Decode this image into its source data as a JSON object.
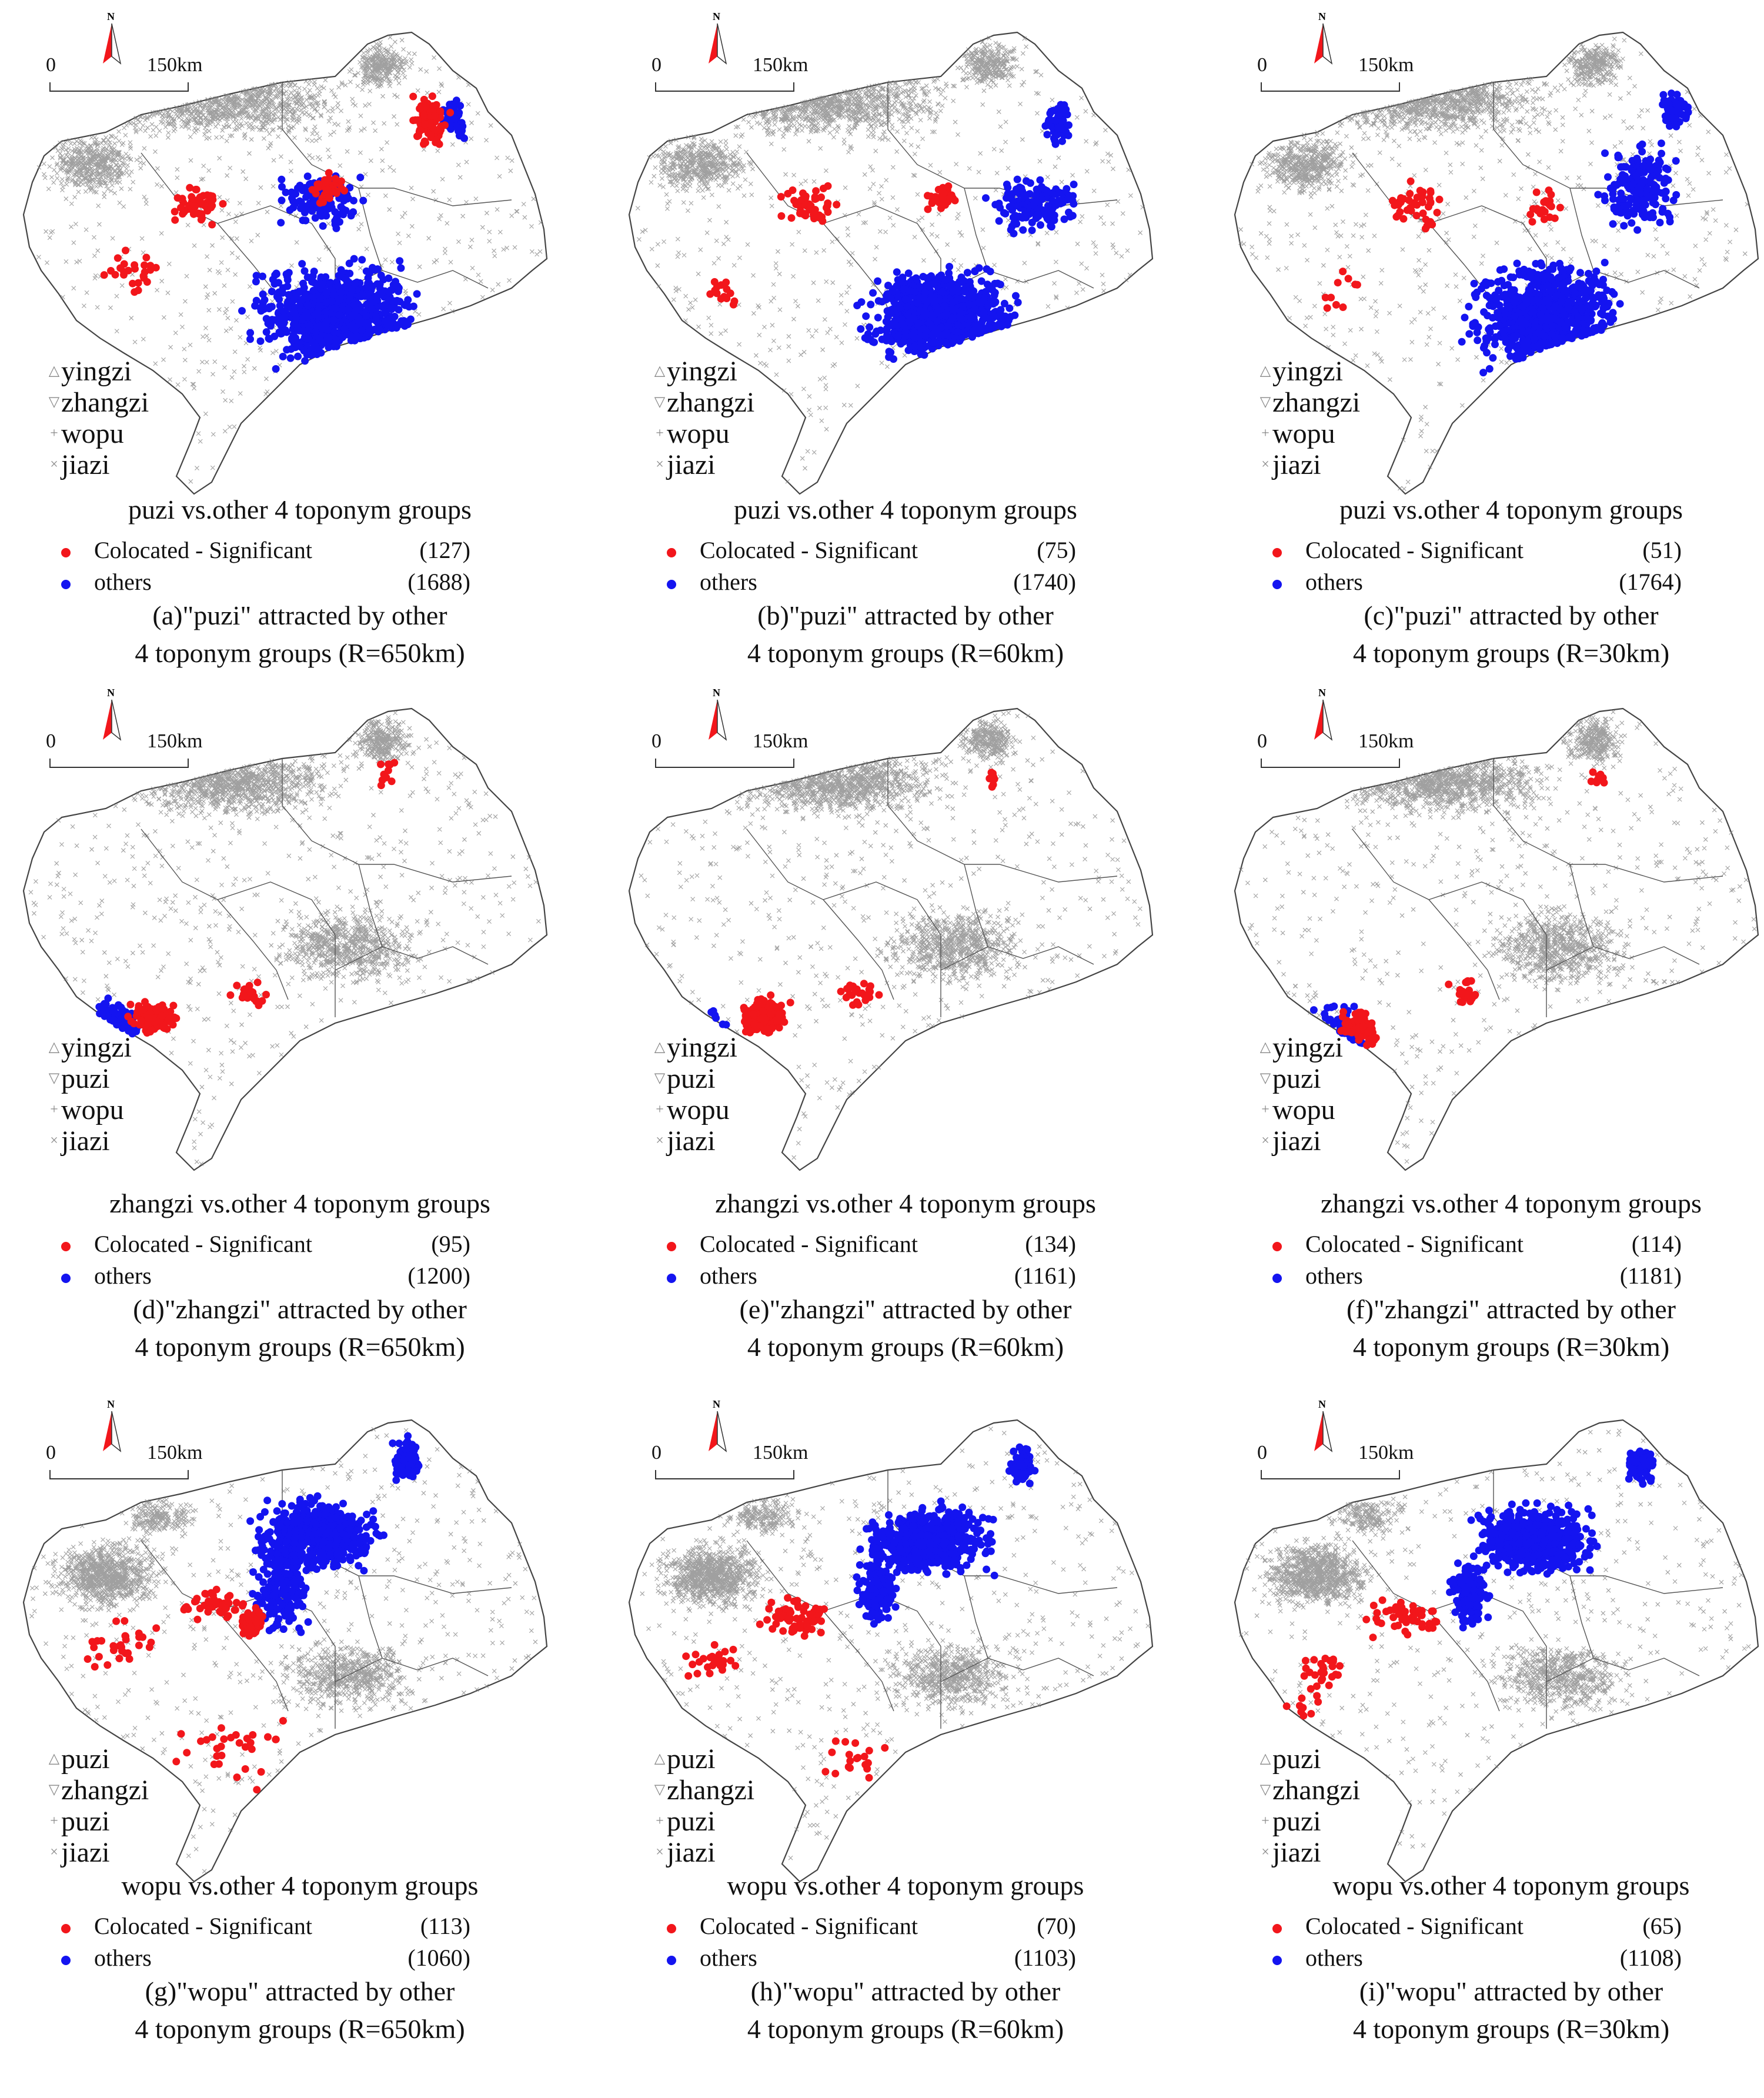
{
  "map_common": {
    "scale_zero": "0",
    "scale_label": "150km",
    "north_label": "N"
  },
  "colors": {
    "colocated": "#f2161b",
    "others": "#1414f0",
    "basemap": "#808080",
    "outline": "#444444"
  },
  "panels": [
    {
      "symbols": [
        "yingzi",
        "zhangzi",
        "wopu",
        "jiazi"
      ],
      "title": "puzi vs.other 4 toponym groups",
      "legend": [
        {
          "label": "Colocated - Significant",
          "count": "(127)"
        },
        {
          "label": "others",
          "count": "(1688)"
        }
      ],
      "caption": [
        "(a)\"puzi\" attracted by other",
        "4 toponym groups (R=650km)"
      ]
    },
    {
      "symbols": [
        "yingzi",
        "zhangzi",
        "wopu",
        "jiazi"
      ],
      "title": "puzi vs.other 4 toponym groups",
      "legend": [
        {
          "label": "Colocated - Significant",
          "count": "(75)"
        },
        {
          "label": "others",
          "count": "(1740)"
        }
      ],
      "caption": [
        "(b)\"puzi\" attracted by other",
        "4 toponym groups (R=60km)"
      ]
    },
    {
      "symbols": [
        "yingzi",
        "zhangzi",
        "wopu",
        "jiazi"
      ],
      "title": "puzi vs.other 4 toponym groups",
      "legend": [
        {
          "label": "Colocated - Significant",
          "count": "(51)"
        },
        {
          "label": "others",
          "count": "(1764)"
        }
      ],
      "caption": [
        "(c)\"puzi\" attracted by other",
        "4 toponym groups (R=30km)"
      ]
    },
    {
      "symbols": [
        "yingzi",
        "puzi",
        "wopu",
        "jiazi"
      ],
      "title": "zhangzi vs.other 4 toponym groups",
      "legend": [
        {
          "label": "Colocated - Significant",
          "count": "(95)"
        },
        {
          "label": "others",
          "count": "(1200)"
        }
      ],
      "caption": [
        "(d)\"zhangzi\" attracted by other",
        "4 toponym groups (R=650km)"
      ]
    },
    {
      "symbols": [
        "yingzi",
        "puzi",
        "wopu",
        "jiazi"
      ],
      "title": "zhangzi vs.other 4 toponym groups",
      "legend": [
        {
          "label": "Colocated - Significant",
          "count": "(134)"
        },
        {
          "label": "others",
          "count": "(1161)"
        }
      ],
      "caption": [
        "(e)\"zhangzi\" attracted by other",
        "4 toponym groups (R=60km)"
      ]
    },
    {
      "symbols": [
        "yingzi",
        "puzi",
        "wopu",
        "jiazi"
      ],
      "title": "zhangzi vs.other 4 toponym groups",
      "legend": [
        {
          "label": "Colocated - Significant",
          "count": "(114)"
        },
        {
          "label": "others",
          "count": "(1181)"
        }
      ],
      "caption": [
        "(f)\"zhangzi\" attracted by other",
        "4 toponym groups (R=30km)"
      ]
    },
    {
      "symbols": [
        "puzi",
        "zhangzi",
        "puzi",
        "jiazi"
      ],
      "title": "wopu vs.other 4 toponym groups",
      "legend": [
        {
          "label": "Colocated - Significant",
          "count": "(113)"
        },
        {
          "label": "others",
          "count": "(1060)"
        }
      ],
      "caption": [
        "(g)\"wopu\" attracted by other",
        "4 toponym groups (R=650km)"
      ]
    },
    {
      "symbols": [
        "puzi",
        "zhangzi",
        "puzi",
        "jiazi"
      ],
      "title": "wopu vs.other 4 toponym groups",
      "legend": [
        {
          "label": "Colocated - Significant",
          "count": "(70)"
        },
        {
          "label": "others",
          "count": "(1103)"
        }
      ],
      "caption": [
        "(h)\"wopu\" attracted by other",
        "4 toponym groups (R=60km)"
      ]
    },
    {
      "symbols": [
        "puzi",
        "zhangzi",
        "puzi",
        "jiazi"
      ],
      "title": "wopu vs.other 4 toponym groups",
      "legend": [
        {
          "label": "Colocated - Significant",
          "count": "(65)"
        },
        {
          "label": "others",
          "count": "(1108)"
        }
      ],
      "caption": [
        "(i)\"wopu\" attracted by other",
        "4 toponym groups (R=30km)"
      ]
    }
  ]
}
